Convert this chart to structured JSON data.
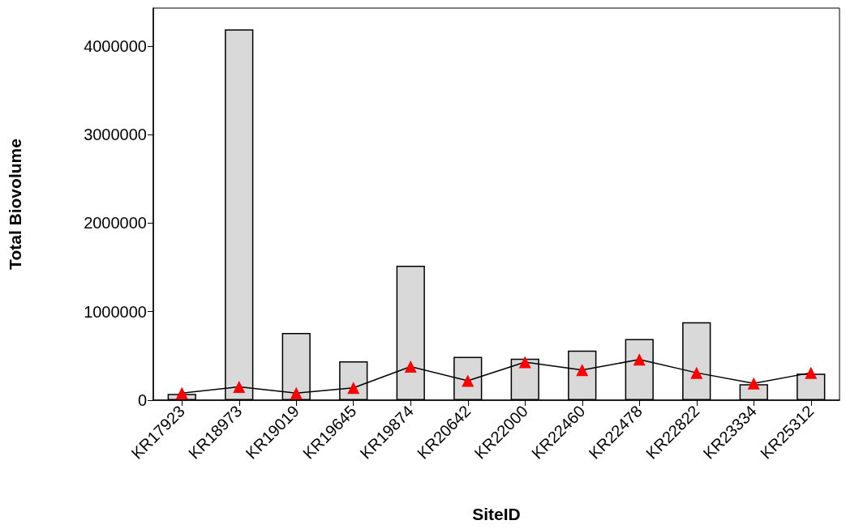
{
  "chart_data": {
    "type": "bar",
    "xlabel": "SiteID",
    "ylabel": "Total Biovolume",
    "categories": [
      "KR17923",
      "KR18973",
      "KR19019",
      "KR19645",
      "KR19874",
      "KR20642",
      "KR22000",
      "KR22460",
      "KR22478",
      "KR22822",
      "KR23334",
      "KR25312"
    ],
    "series": [
      {
        "color": "#d9d9d9",
        "values": [
          70000,
          4190000,
          760000,
          440000,
          1520000,
          490000,
          470000,
          560000,
          690000,
          880000,
          180000,
          300000
        ]
      },
      {
        "type": "line",
        "color": "#ff0000",
        "marker": "triangle",
        "line_style": "solid",
        "values": [
          80000,
          150000,
          80000,
          140000,
          380000,
          220000,
          430000,
          340000,
          460000,
          310000,
          190000,
          310000
        ]
      }
    ],
    "ylim": [
      0,
      4430000
    ],
    "yticks": [
      0,
      1000000,
      2000000,
      3000000,
      4000000
    ],
    "grid": false
  }
}
